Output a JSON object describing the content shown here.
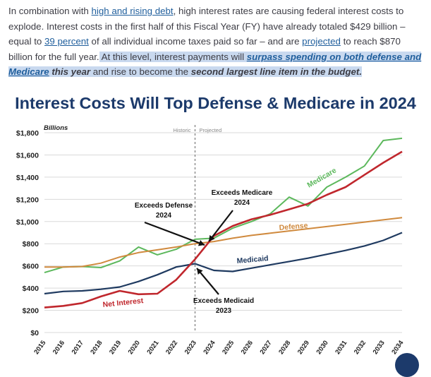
{
  "article": {
    "s1": "In combination with ",
    "link1": "high and rising debt",
    "s2": ", high interest rates are causing federal interest costs to explode. Interest costs in the first half of this Fiscal Year (FY) have already totaled $429 billion – equal to ",
    "link2": "39 percent",
    "s3": " of all individual income taxes paid so far – and are ",
    "link3": "projected",
    "s4": " to reach $870 billion for the full year.",
    "s5": " At this level, interest payments will ",
    "emph1": "surpass spending on both defense and Medicare",
    "bold1": " this year",
    "s6": " and rise to become the ",
    "bold2": "second largest line item in the budget.",
    "highlight_color": "#c9d9ef",
    "link_color": "#1f5e9c"
  },
  "chart_data": {
    "type": "line",
    "title": "Interest Costs Will Top Defense & Medicare in 2024",
    "unit_label": "Billions",
    "region_labels": [
      "Historic",
      "Projected"
    ],
    "divider_year": "2023",
    "x": [
      "2015",
      "2016",
      "2017",
      "2018",
      "2019",
      "2020",
      "2021",
      "2022",
      "2023",
      "2024",
      "2025",
      "2026",
      "2027",
      "2028",
      "2029",
      "2030",
      "2031",
      "2032",
      "2033",
      "2034"
    ],
    "ylim": [
      0,
      1800
    ],
    "yticks": [
      0,
      200,
      400,
      600,
      800,
      1000,
      1200,
      1400,
      1600,
      1800
    ],
    "ytick_labels": [
      "$0",
      "$200",
      "$400",
      "$600",
      "$800",
      "$1,000",
      "$1,200",
      "$1,400",
      "$1,600",
      "$1,800"
    ],
    "series": [
      {
        "name": "Medicare",
        "color": "#5cb85c",
        "values": [
          540,
          590,
          595,
          585,
          645,
          770,
          700,
          750,
          840,
          850,
          940,
          1000,
          1070,
          1220,
          1140,
          1310,
          1400,
          1500,
          1730,
          1750
        ]
      },
      {
        "name": "Defense",
        "color": "#d08a3e",
        "values": [
          590,
          590,
          595,
          625,
          680,
          720,
          745,
          770,
          800,
          820,
          850,
          875,
          895,
          915,
          935,
          955,
          975,
          995,
          1015,
          1035
        ]
      },
      {
        "name": "Medicaid",
        "color": "#1f3a60",
        "values": [
          350,
          370,
          375,
          390,
          410,
          460,
          520,
          590,
          620,
          560,
          550,
          580,
          610,
          640,
          670,
          705,
          740,
          780,
          830,
          900
        ]
      },
      {
        "name": "Net Interest",
        "color": "#c0272d",
        "values": [
          225,
          240,
          265,
          325,
          375,
          345,
          350,
          475,
          660,
          870,
          960,
          1020,
          1060,
          1110,
          1160,
          1240,
          1310,
          1420,
          1530,
          1630
        ]
      }
    ],
    "annotations": [
      {
        "text": [
          "Exceeds Defense",
          "2024"
        ]
      },
      {
        "text": [
          "Exceeds Medicare",
          "2024"
        ]
      },
      {
        "text": [
          "Exceeds Medicaid",
          "2023"
        ]
      }
    ],
    "grid": true,
    "legend": "inline labels on lines"
  }
}
